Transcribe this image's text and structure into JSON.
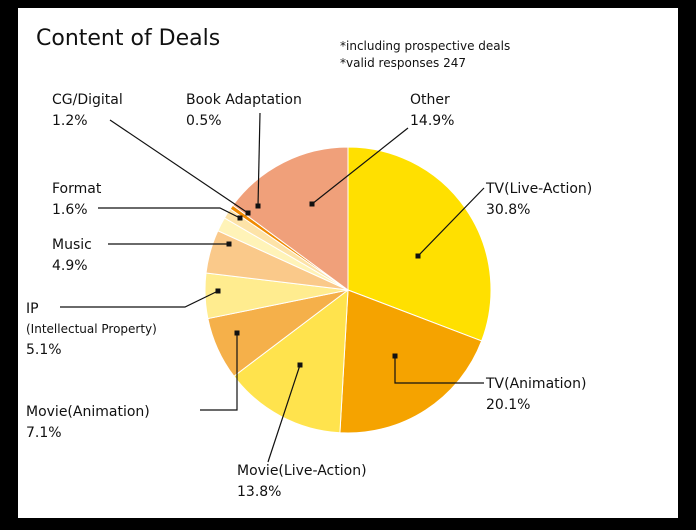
{
  "chart_data": {
    "type": "pie",
    "title": "Content of Deals",
    "notes": [
      "*including prospective deals",
      "*valid responses 247"
    ],
    "categories": [
      "TV(Live-Action)",
      "TV(Animation)",
      "Movie(Live-Action)",
      "Movie(Animation)",
      "IP",
      "Music",
      "Format",
      "CG/Digital",
      "Book Adaptation",
      "Other"
    ],
    "category_notes": [
      null,
      null,
      null,
      null,
      "(Intellectual Property)",
      null,
      null,
      null,
      null,
      null
    ],
    "values": [
      30.8,
      20.1,
      13.8,
      7.1,
      5.1,
      4.9,
      1.6,
      1.2,
      0.5,
      14.9
    ],
    "value_labels": [
      "30.8%",
      "20.1%",
      "13.8%",
      "7.1%",
      "5.1%",
      "4.9%",
      "1.6%",
      "1.2%",
      "0.5%",
      "14.9%"
    ],
    "colors": [
      "#FFE000",
      "#F5A300",
      "#FFE34D",
      "#F5B04A",
      "#FFEC8F",
      "#FAC98A",
      "#FFF3B8",
      "#FDE3A8",
      "#F08A00",
      "#F0A07A"
    ]
  }
}
